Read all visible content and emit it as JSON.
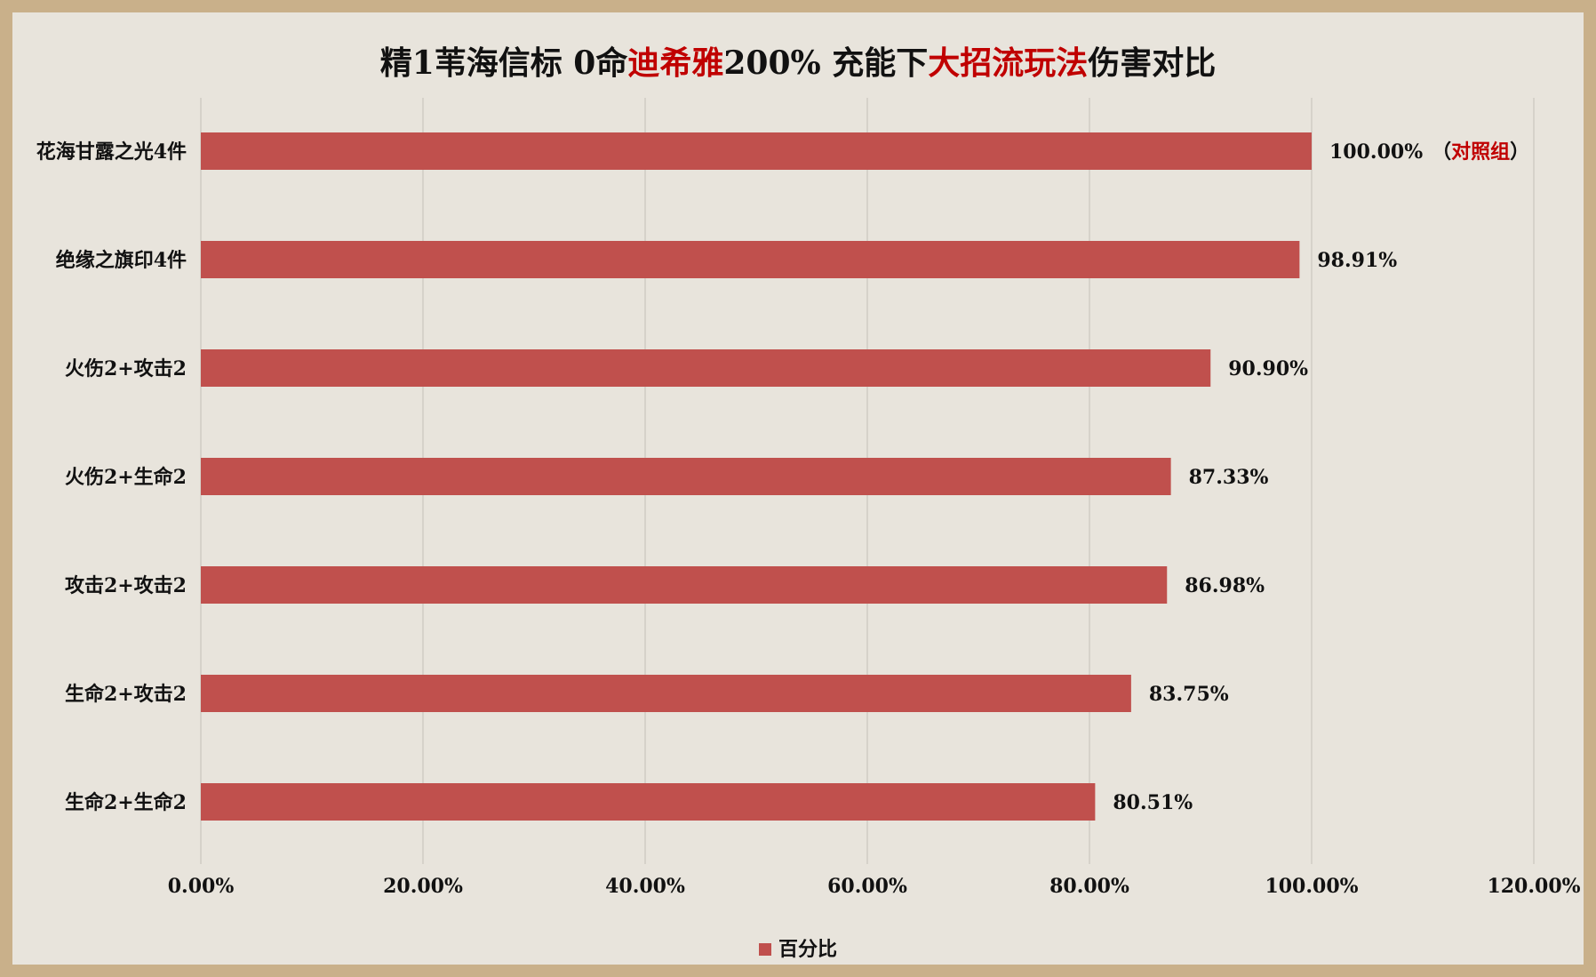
{
  "title_parts": {
    "p1": "精1苇海信标 0命",
    "p2": "迪希雅",
    "p3": "200% 充能下",
    "p4": "大招流玩法",
    "p5": "伤害对比"
  },
  "colors": {
    "bar": "#c0504d",
    "highlight": "#c00000",
    "background": "#e8e4dc",
    "border": "#c9b08a",
    "grid": "#d6d2ca"
  },
  "chart_data": {
    "type": "bar",
    "orientation": "horizontal",
    "categories": [
      "花海甘露之光4件",
      "绝缘之旗印4件",
      "火伤2+攻击2",
      "火伤2+生命2",
      "攻击2+攻击2",
      "生命2+攻击2",
      "生命2+生命2"
    ],
    "series": [
      {
        "name": "百分比",
        "values": [
          100.0,
          98.91,
          90.9,
          87.33,
          86.98,
          83.75,
          80.51
        ],
        "labels": [
          "100.00%",
          "98.91%",
          "90.90%",
          "87.33%",
          "86.98%",
          "83.75%",
          "80.51%"
        ]
      }
    ],
    "annotation": {
      "open": "（",
      "text": "对照组",
      "close": "）",
      "category_index": 0
    },
    "xlim": [
      0,
      120
    ],
    "xticks": [
      0,
      20,
      40,
      60,
      80,
      100,
      120
    ],
    "xtick_labels": [
      "0.00%",
      "20.00%",
      "40.00%",
      "60.00%",
      "80.00%",
      "100.00%",
      "120.00%"
    ],
    "grid": "vertical",
    "legend": "bottom-center"
  }
}
